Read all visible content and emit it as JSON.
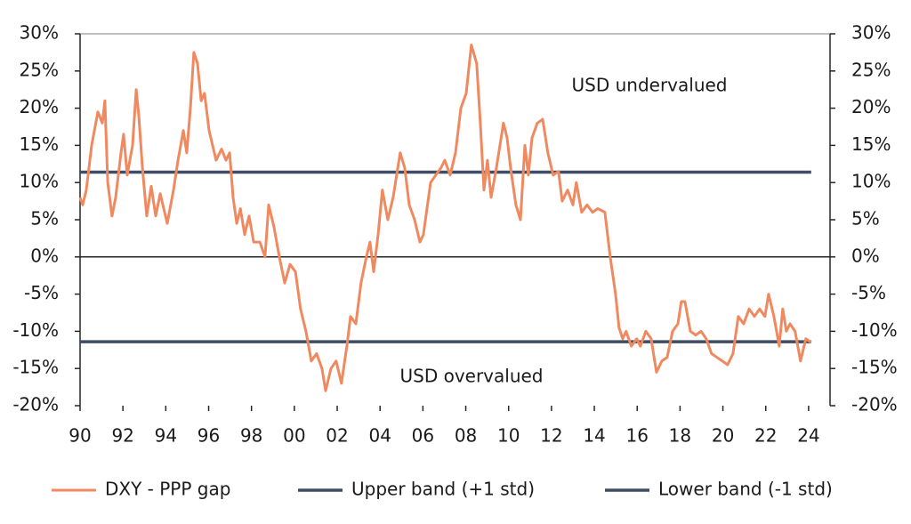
{
  "chart_data": {
    "type": "line",
    "annotations": [
      "USD undervalued",
      "USD overvalued"
    ],
    "xlim": [
      1990,
      2025
    ],
    "xticks": [
      {
        "value": 1990,
        "label": "90"
      },
      {
        "value": 1992,
        "label": "92"
      },
      {
        "value": 1994,
        "label": "94"
      },
      {
        "value": 1996,
        "label": "96"
      },
      {
        "value": 1998,
        "label": "98"
      },
      {
        "value": 2000,
        "label": "00"
      },
      {
        "value": 2002,
        "label": "02"
      },
      {
        "value": 2004,
        "label": "04"
      },
      {
        "value": 2006,
        "label": "06"
      },
      {
        "value": 2008,
        "label": "08"
      },
      {
        "value": 2010,
        "label": "10"
      },
      {
        "value": 2012,
        "label": "12"
      },
      {
        "value": 2014,
        "label": "14"
      },
      {
        "value": 2016,
        "label": "16"
      },
      {
        "value": 2018,
        "label": "18"
      },
      {
        "value": 2020,
        "label": "20"
      },
      {
        "value": 2022,
        "label": "22"
      },
      {
        "value": 2024,
        "label": "24"
      }
    ],
    "ylim": [
      -20,
      30
    ],
    "yticks": [
      {
        "value": -20,
        "label": "-20%"
      },
      {
        "value": -15,
        "label": "-15%"
      },
      {
        "value": -10,
        "label": "-10%"
      },
      {
        "value": -5,
        "label": "-5%"
      },
      {
        "value": 0,
        "label": "0%"
      },
      {
        "value": 5,
        "label": "5%"
      },
      {
        "value": 10,
        "label": "10%"
      },
      {
        "value": 15,
        "label": "15%"
      },
      {
        "value": 20,
        "label": "20%"
      },
      {
        "value": 25,
        "label": "25%"
      },
      {
        "value": 30,
        "label": "30%"
      }
    ],
    "legend": "bottom",
    "series": [
      {
        "name": "DXY - PPP gap",
        "color": "#f0895f",
        "x": [
          1990.0,
          1990.12,
          1990.29,
          1990.54,
          1990.83,
          1991.04,
          1991.16,
          1991.29,
          1991.49,
          1991.66,
          1991.91,
          1992.03,
          1992.2,
          1992.45,
          1992.62,
          1992.74,
          1992.91,
          1993.11,
          1993.32,
          1993.53,
          1993.74,
          1994.07,
          1994.36,
          1994.57,
          1994.82,
          1994.98,
          1995.15,
          1995.31,
          1995.48,
          1995.65,
          1995.81,
          1996.02,
          1996.35,
          1996.6,
          1996.81,
          1996.98,
          1997.14,
          1997.31,
          1997.48,
          1997.68,
          1997.89,
          1998.1,
          1998.39,
          1998.63,
          1998.8,
          1999.05,
          1999.3,
          1999.55,
          1999.8,
          2000.05,
          2000.29,
          2000.54,
          2000.79,
          2001.04,
          2001.29,
          2001.46,
          2001.71,
          2001.95,
          2002.2,
          2002.45,
          2002.62,
          2002.87,
          2003.11,
          2003.36,
          2003.53,
          2003.7,
          2003.91,
          2004.11,
          2004.36,
          2004.61,
          2004.94,
          2005.15,
          2005.36,
          2005.61,
          2005.86,
          2006.02,
          2006.36,
          2006.6,
          2006.85,
          2007.02,
          2007.27,
          2007.52,
          2007.77,
          2008.02,
          2008.26,
          2008.51,
          2008.68,
          2008.85,
          2009.01,
          2009.18,
          2009.43,
          2009.76,
          2009.93,
          2010.09,
          2010.34,
          2010.55,
          2010.76,
          2010.92,
          2011.09,
          2011.34,
          2011.59,
          2011.83,
          2012.08,
          2012.33,
          2012.5,
          2012.75,
          2013.0,
          2013.16,
          2013.41,
          2013.66,
          2013.91,
          2014.16,
          2014.49,
          2014.74,
          2014.99,
          2015.15,
          2015.32,
          2015.48,
          2015.73,
          2015.98,
          2016.15,
          2016.4,
          2016.65,
          2016.9,
          2017.15,
          2017.4,
          2017.65,
          2017.9,
          2018.06,
          2018.23,
          2018.48,
          2018.73,
          2018.98,
          2019.22,
          2019.47,
          2019.72,
          2019.97,
          2020.22,
          2020.47,
          2020.72,
          2020.97,
          2021.22,
          2021.47,
          2021.71,
          2021.96,
          2022.13,
          2022.38,
          2022.63,
          2022.79,
          2022.96,
          2023.13,
          2023.37,
          2023.62,
          2023.87,
          2024.12
        ],
        "values": [
          8,
          7,
          9,
          15,
          19.5,
          18,
          21,
          10,
          5.5,
          8,
          14,
          16.5,
          11,
          15,
          22.5,
          19,
          12,
          5.5,
          9.5,
          5.5,
          8.5,
          4.5,
          9,
          13,
          17,
          14,
          20,
          27.5,
          26,
          21,
          22,
          17,
          13,
          14.5,
          13,
          14,
          8,
          4.5,
          6.5,
          3,
          5.5,
          2,
          2,
          0,
          7,
          4,
          0,
          -3.5,
          -1,
          -2,
          -7,
          -10,
          -14,
          -13,
          -15,
          -18,
          -15,
          -14,
          -17,
          -12,
          -8,
          -9,
          -3.5,
          0,
          2,
          -2,
          3,
          9,
          5,
          8,
          14,
          12,
          7,
          5,
          2,
          3,
          10,
          11,
          12,
          13,
          11,
          14,
          20,
          22,
          28.5,
          26,
          18,
          9,
          13,
          8,
          12,
          18,
          16,
          12,
          7,
          5,
          15,
          11,
          16,
          18,
          18.5,
          14,
          11,
          11.5,
          7.5,
          9,
          7,
          10,
          6,
          7,
          6,
          6.5,
          6,
          0,
          -5,
          -9.5,
          -11,
          -10,
          -12,
          -11,
          -12,
          -10,
          -11,
          -15.5,
          -14,
          -13.5,
          -10,
          -9,
          -6,
          -6,
          -10,
          -10.5,
          -10,
          -11,
          -13,
          -13.5,
          -14,
          -14.5,
          -13,
          -8,
          -9,
          -7,
          -8,
          -7,
          -8,
          -5,
          -8,
          -12,
          -7,
          -10,
          -9,
          -10,
          -14,
          -11,
          -11.5
        ]
      },
      {
        "name": "Upper band (+1 std)",
        "color": "#3e4c65",
        "x": [
          1990.0,
          2024.12
        ],
        "values": [
          11.4,
          11.4
        ]
      },
      {
        "name": "Lower band (-1 std)",
        "color": "#3e4c65",
        "x": [
          1990.0,
          2024.12
        ],
        "values": [
          -11.4,
          -11.4
        ]
      }
    ]
  }
}
